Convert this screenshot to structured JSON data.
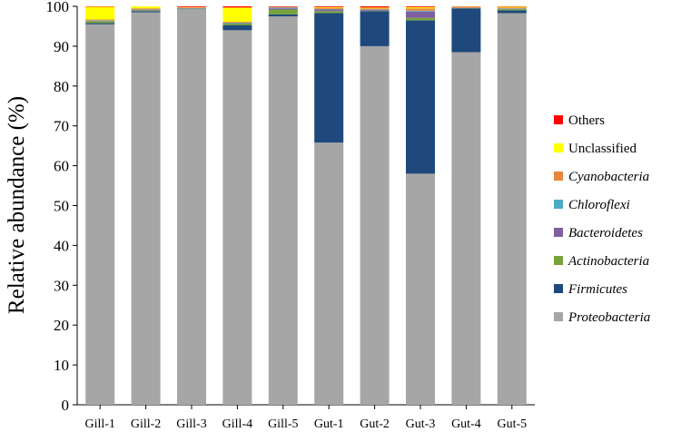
{
  "chart_data": {
    "type": "bar",
    "stacked": true,
    "ylabel": "Relative abundance (%)",
    "xlabel": "",
    "title": "",
    "ylim": [
      0,
      100
    ],
    "yticks": [
      0,
      10,
      20,
      30,
      40,
      50,
      60,
      70,
      80,
      90,
      100
    ],
    "grid": false,
    "legend_position": "right",
    "categories": [
      "Gill-1",
      "Gill-2",
      "Gill-3",
      "Gill-4",
      "Gill-5",
      "Gut-1",
      "Gut-2",
      "Gut-3",
      "Gut-4",
      "Gut-5"
    ],
    "series": [
      {
        "name": "Proteobacteria",
        "italic": true,
        "color": "#A6A6A6",
        "values": [
          95.5,
          98.5,
          99.3,
          94.0,
          97.5,
          65.8,
          90.0,
          58.0,
          88.5,
          98.3
        ]
      },
      {
        "name": "Firmicutes",
        "italic": true,
        "color": "#1F497D",
        "values": [
          0.3,
          0.3,
          0.1,
          1.3,
          0.5,
          32.5,
          8.8,
          38.5,
          11.0,
          0.7
        ]
      },
      {
        "name": "Actinobacteria",
        "italic": true,
        "color": "#77A33A",
        "values": [
          0.5,
          0.2,
          0.1,
          0.4,
          1.2,
          0.5,
          0.1,
          0.6,
          0.1,
          0.3
        ]
      },
      {
        "name": "Bacteroidetes",
        "italic": true,
        "color": "#7F5FA0",
        "values": [
          0.1,
          0.1,
          0.1,
          0.1,
          0.3,
          0.4,
          0.2,
          1.6,
          0.1,
          0.1
        ]
      },
      {
        "name": "Chloroflexi",
        "italic": true,
        "color": "#4BACC6",
        "values": [
          0.1,
          0.1,
          0.0,
          0.1,
          0.2,
          0.1,
          0.1,
          0.2,
          0.0,
          0.1
        ]
      },
      {
        "name": "Cyanobacteria",
        "italic": true,
        "color": "#E8873C",
        "values": [
          0.2,
          0.3,
          0.1,
          0.2,
          0.2,
          0.3,
          0.3,
          0.6,
          0.1,
          0.2
        ]
      },
      {
        "name": "Unclassified",
        "italic": false,
        "color": "#FFFF00",
        "values": [
          3.2,
          0.5,
          0.1,
          3.6,
          0.0,
          0.2,
          0.2,
          0.3,
          0.1,
          0.2
        ]
      },
      {
        "name": "Others",
        "italic": false,
        "color": "#FF0000",
        "values": [
          0.1,
          0.0,
          0.2,
          0.3,
          0.1,
          0.2,
          0.3,
          0.2,
          0.1,
          0.1
        ]
      }
    ]
  }
}
